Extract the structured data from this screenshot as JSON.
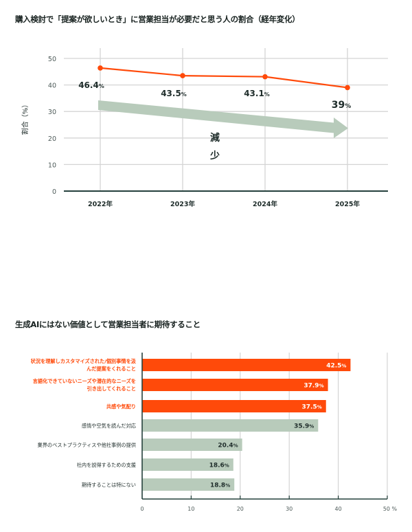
{
  "colors": {
    "accent": "#ff4a0a",
    "muted": "#b8cbbb",
    "grid": "#d4d4d4",
    "axis": "#24403c",
    "text": "#1f2d2b",
    "highlight_label": "#ff4a0a"
  },
  "chart_data": [
    {
      "type": "line",
      "title": "購入検討で「提案が欲しいとき」に営業担当が必要だと思う人の割合（経年変化）",
      "xlabel": "",
      "ylabel": "割合（%）",
      "categories": [
        "2022年",
        "2023年",
        "2024年",
        "2025年"
      ],
      "series": [
        {
          "name": "割合",
          "values": [
            46.4,
            43.5,
            43.1,
            39
          ]
        }
      ],
      "data_labels": [
        "46.4",
        "43.5",
        "43.1",
        "39"
      ],
      "label_unit": "%",
      "yticks": [
        0,
        10,
        20,
        30,
        40,
        50
      ],
      "ylim": [
        0,
        50
      ],
      "grid": true,
      "annotation": {
        "text": "減少",
        "chars": [
          "減",
          "少"
        ],
        "type": "trend-arrow-down"
      }
    },
    {
      "type": "bar",
      "orientation": "horizontal",
      "title": "生成AIにはない価値として営業担当者に期待すること",
      "categories": [
        [
          "状況を理解しカスタマイズされた/個別事情を汲",
          "んだ提案をくれること"
        ],
        [
          "言語化できていないニーズや潜在的なニーズを",
          "引き出してくれること"
        ],
        [
          "共感や気配り"
        ],
        [
          "感情や空気を読んだ対応"
        ],
        [
          "業界のベストプラクティスや他社事例の提供"
        ],
        [
          "社内を説得するための支援"
        ],
        [
          "期待することは特にない"
        ]
      ],
      "values": [
        42.5,
        37.9,
        37.5,
        35.9,
        20.4,
        18.6,
        18.8
      ],
      "value_labels": [
        "42.5",
        "37.9",
        "37.5",
        "35.9",
        "20.4",
        "18.6",
        "18.8"
      ],
      "label_unit": "%",
      "highlighted": [
        true,
        true,
        true,
        false,
        false,
        false,
        false
      ],
      "xticks": [
        "0",
        "10",
        "20",
        "30",
        "40",
        "50 %"
      ],
      "xtick_values": [
        0,
        10,
        20,
        30,
        40,
        50
      ],
      "xlim": [
        0,
        50
      ],
      "grid": true
    }
  ]
}
